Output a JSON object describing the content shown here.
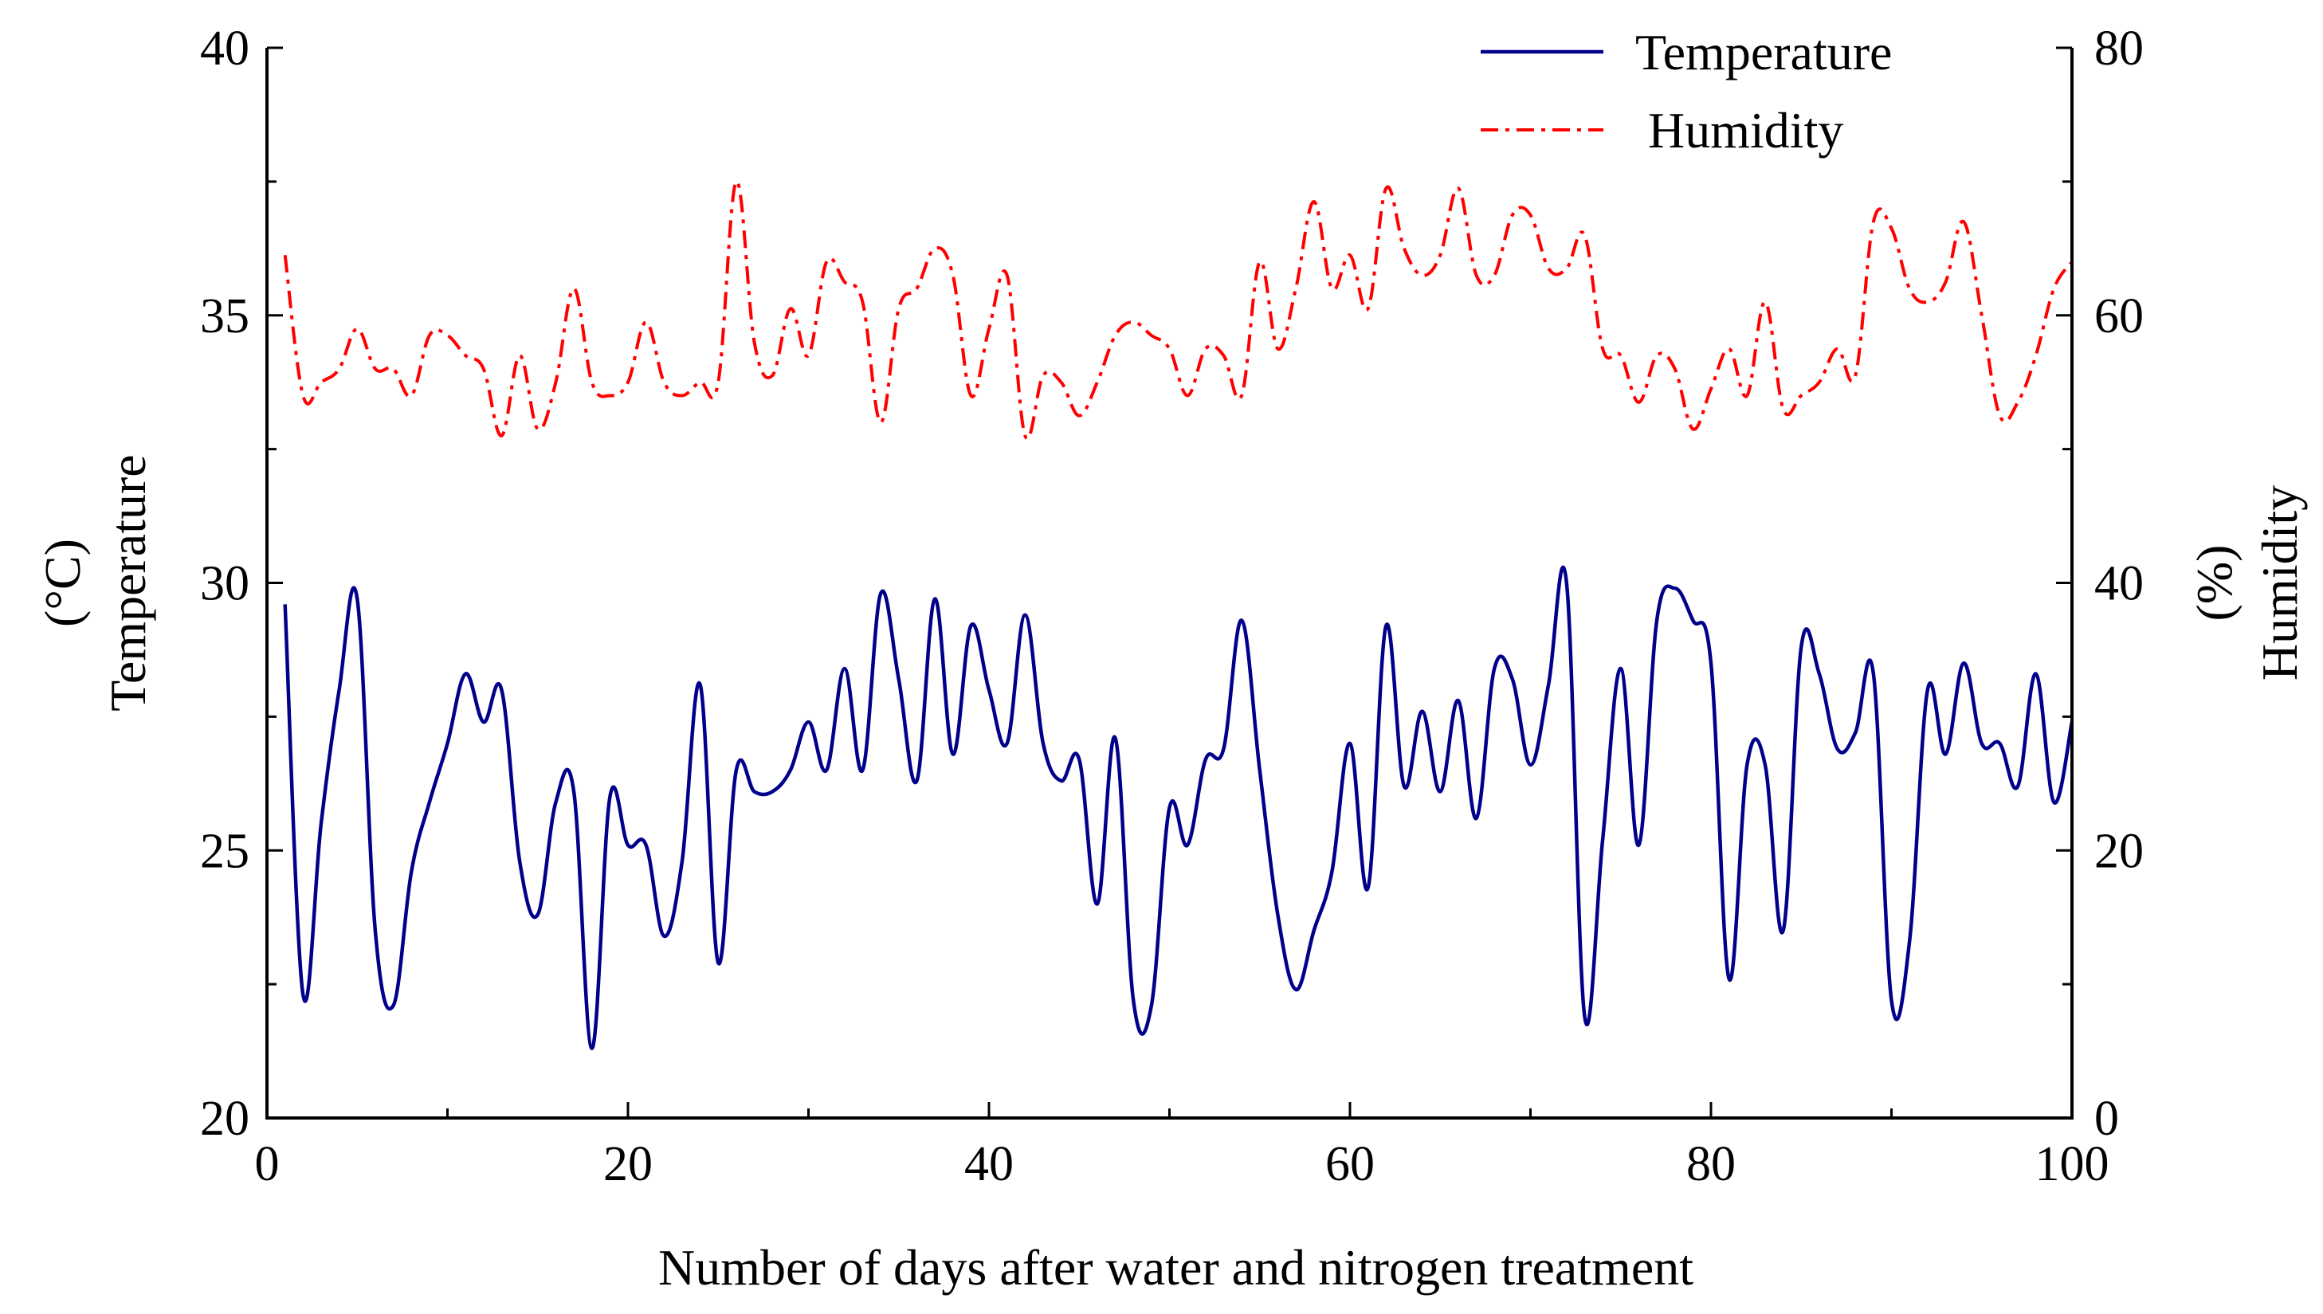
{
  "chart_data": {
    "type": "line",
    "title": "",
    "xlabel": "Number of days after water and nitrogen treatment",
    "ylabel_left": [
      "(°C)",
      "Temperature"
    ],
    "ylabel_right": [
      "(%)",
      "Humidity"
    ],
    "xlim": [
      0,
      100
    ],
    "ylim_left": [
      20,
      40
    ],
    "ylim_right": [
      0,
      80
    ],
    "x_ticks": [
      "0",
      "20",
      "40",
      "60",
      "80",
      "100"
    ],
    "y_ticks_left": [
      "20",
      "25",
      "30",
      "35",
      "40"
    ],
    "y_ticks_right": [
      "0",
      "20",
      "40",
      "60",
      "80"
    ],
    "grid": false,
    "legend_position": "top-right",
    "x": [
      1,
      2,
      3,
      4,
      5,
      6,
      7,
      8,
      9,
      10,
      11,
      12,
      13,
      14,
      15,
      16,
      17,
      18,
      19,
      20,
      21,
      22,
      23,
      24,
      25,
      26,
      27,
      28,
      29,
      30,
      31,
      32,
      33,
      34,
      35,
      36,
      37,
      38,
      39,
      40,
      41,
      42,
      43,
      44,
      45,
      46,
      47,
      48,
      49,
      50,
      51,
      52,
      53,
      54,
      55,
      56,
      57,
      58,
      59,
      60,
      61,
      62,
      63,
      64,
      65,
      66,
      67,
      68,
      69,
      70,
      71,
      72,
      73,
      74,
      75,
      76,
      77,
      78,
      79,
      80,
      81,
      82,
      83,
      84,
      85,
      86,
      87,
      88,
      89,
      90,
      91,
      92,
      93,
      94,
      95,
      96,
      97,
      98,
      99,
      100
    ],
    "series": [
      {
        "name": "Temperature",
        "axis": "left",
        "color": "#00008B",
        "dash": "solid",
        "values": [
          29.6,
          22.3,
          25.5,
          28.0,
          29.7,
          23.5,
          22.1,
          24.6,
          25.9,
          27.0,
          28.3,
          27.4,
          28.0,
          24.8,
          23.8,
          25.9,
          26.1,
          21.3,
          26.0,
          25.1,
          25.1,
          23.4,
          24.8,
          28.1,
          22.9,
          26.5,
          26.1,
          26.1,
          26.5,
          27.4,
          26.5,
          28.4,
          26.5,
          29.8,
          28.2,
          26.3,
          29.7,
          26.8,
          29.2,
          28.0,
          27.0,
          29.4,
          27.0,
          26.3,
          26.7,
          24.0,
          27.1,
          22.2,
          22.1,
          25.8,
          25.1,
          26.7,
          26.9,
          29.3,
          26.5,
          23.8,
          22.4,
          23.5,
          24.6,
          27.0,
          24.3,
          29.2,
          26.2,
          27.6,
          26.1,
          27.8,
          25.6,
          28.4,
          28.2,
          26.6,
          28.1,
          30.0,
          21.9,
          25.2,
          28.4,
          25.1,
          29.3,
          29.9,
          29.3,
          28.5,
          22.6,
          26.6,
          26.6,
          23.5,
          28.8,
          28.3,
          26.9,
          27.2,
          28.3,
          22.2,
          23.3,
          28.0,
          26.8,
          28.5,
          27.0,
          27.0,
          26.2,
          28.3,
          25.9,
          27.4
        ]
      },
      {
        "name": "Humidity",
        "axis": "right",
        "color": "#FF0000",
        "dash": "dashdot",
        "values": [
          64.5,
          54.0,
          55.0,
          56.0,
          59.0,
          56.0,
          56.0,
          54.0,
          58.5,
          58.5,
          57.0,
          56.0,
          51.0,
          57.0,
          51.5,
          55.0,
          62.0,
          55.0,
          54.0,
          55.0,
          59.5,
          55.0,
          54.0,
          55.0,
          55.0,
          70.0,
          58.0,
          55.5,
          60.5,
          57.0,
          64.0,
          62.5,
          61.0,
          52.0,
          60.5,
          62.0,
          65.0,
          63.0,
          54.0,
          59.0,
          63.0,
          51.0,
          55.5,
          55.0,
          52.5,
          55.0,
          58.5,
          59.5,
          58.5,
          57.5,
          54.0,
          57.5,
          57.0,
          54.0,
          64.0,
          57.5,
          62.0,
          68.5,
          62.0,
          64.5,
          60.5,
          69.5,
          65.0,
          63.0,
          64.5,
          69.5,
          63.0,
          63.0,
          67.5,
          67.5,
          63.5,
          63.5,
          66.0,
          57.5,
          57.0,
          53.5,
          57.0,
          56.0,
          51.5,
          54.5,
          57.5,
          54.0,
          61.0,
          53.0,
          54.0,
          55.0,
          57.5,
          55.5,
          67.0,
          66.5,
          62.0,
          61.0,
          62.5,
          67.0,
          60.0,
          52.5,
          53.5,
          57.0,
          62.0,
          64.0
        ]
      }
    ]
  }
}
